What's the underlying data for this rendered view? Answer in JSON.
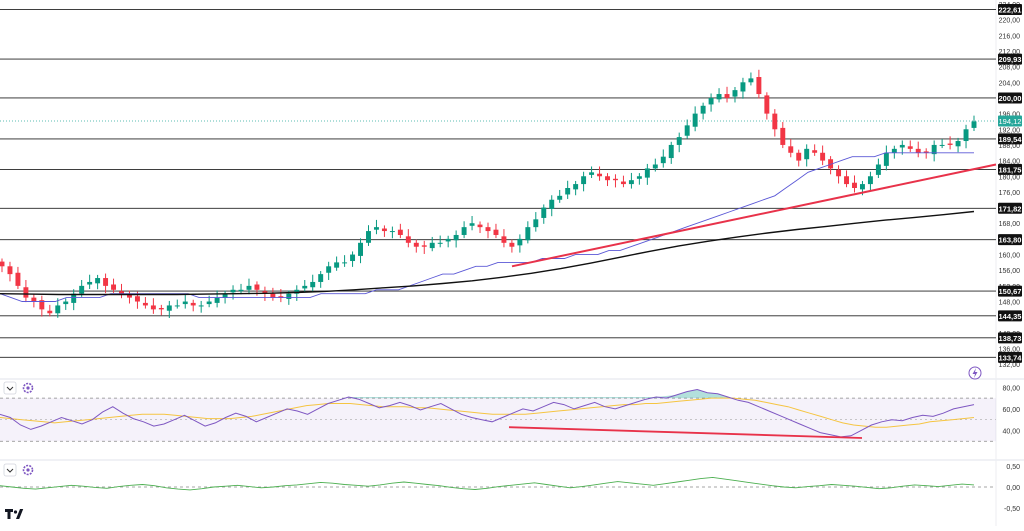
{
  "chart_data": {
    "type": "candlestick",
    "price_axis": {
      "ylim": [
        130.0,
        224.0
      ],
      "ticks": [
        "224,00",
        "220,00",
        "216,00",
        "212,00",
        "208,00",
        "204,00",
        "200,00",
        "196,00",
        "192,00",
        "188,00",
        "184,00",
        "180,00",
        "176,00",
        "168,00",
        "164,00",
        "160,00",
        "156,00",
        "152,00",
        "148,00",
        "140,00",
        "136,00",
        "132,00"
      ],
      "tick_values": [
        224,
        220,
        216,
        212,
        208,
        204,
        200,
        196,
        192,
        188,
        184,
        180,
        176,
        168,
        164,
        160,
        156,
        152,
        148,
        140,
        136,
        132
      ]
    },
    "levels": [
      {
        "value": 222.61,
        "label": "222,61"
      },
      {
        "value": 209.93,
        "label": "209,93"
      },
      {
        "value": 200.0,
        "label": "200,00"
      },
      {
        "value": 189.54,
        "label": "189,54"
      },
      {
        "value": 181.75,
        "label": "181,75"
      },
      {
        "value": 171.82,
        "label": "171,82"
      },
      {
        "value": 163.8,
        "label": "163,80"
      },
      {
        "value": 150.67,
        "label": "150,67"
      },
      {
        "value": 144.35,
        "label": "144,35"
      },
      {
        "value": 138.73,
        "label": "138,73"
      },
      {
        "value": 133.74,
        "label": "133,74"
      }
    ],
    "last_price": {
      "value": 194.12,
      "label": "194,12"
    },
    "closes": [
      157,
      155,
      152,
      149,
      148,
      146,
      145,
      147,
      148,
      150,
      152,
      153,
      154,
      152,
      151,
      150,
      149,
      148,
      147,
      146,
      146,
      147,
      147,
      148,
      147,
      147,
      148,
      149,
      150,
      151,
      151,
      152,
      151,
      150,
      149,
      149,
      150,
      151,
      152,
      153,
      155,
      157,
      158,
      158,
      160,
      163,
      166,
      167,
      166,
      166,
      165,
      163,
      162,
      162,
      163,
      163,
      164,
      165,
      167,
      168,
      167,
      166,
      165,
      163,
      162,
      164,
      167,
      169,
      172,
      174,
      175,
      177,
      178,
      180,
      181,
      180,
      179,
      179,
      178,
      179,
      180,
      182,
      183,
      185,
      188,
      190,
      193,
      196,
      198,
      200,
      201,
      200,
      202,
      204,
      205,
      201,
      196,
      192,
      188,
      186,
      184,
      187,
      186,
      184,
      182,
      180,
      178,
      177,
      178,
      180,
      183,
      186,
      187,
      188,
      187,
      186,
      186,
      188,
      188,
      188,
      189,
      192,
      194
    ],
    "overlays": [
      {
        "name": "MA-50",
        "color": "#5b58d6",
        "values": [
          150,
          149,
          148,
          148,
          148,
          148,
          149,
          149,
          149,
          149,
          150,
          150,
          150,
          150,
          150,
          150,
          150,
          150,
          149,
          149,
          149,
          149,
          149,
          149,
          149,
          149,
          149,
          149,
          149,
          150,
          150,
          150,
          150,
          150,
          151,
          151,
          151,
          152,
          153,
          154,
          155,
          155,
          156,
          157,
          157,
          158,
          158,
          158,
          158,
          159,
          159,
          159,
          160,
          160,
          160,
          161,
          161,
          162,
          163,
          164,
          165,
          166,
          167,
          168,
          169,
          170,
          171,
          172,
          173,
          174,
          175,
          177,
          179,
          181,
          182,
          183,
          184,
          185,
          185,
          185,
          186,
          186,
          186,
          186,
          186,
          186,
          186,
          186,
          186
        ]
      },
      {
        "name": "MA-200",
        "color": "#111111",
        "values": [
          150.0,
          149.9,
          149.8,
          149.8,
          149.8,
          149.8,
          149.8,
          149.9,
          150.0,
          150.1,
          150.3,
          150.6,
          151.0,
          151.5,
          152.0,
          152.6,
          153.3,
          154.2,
          155.2,
          156.4,
          157.8,
          159.3,
          160.8,
          162.2,
          163.4,
          164.5,
          165.5,
          166.4,
          167.2,
          168.0,
          168.8,
          169.5,
          170.2,
          171.0
        ]
      },
      {
        "name": "Trendline",
        "color": "#e8324a",
        "from": 157.0,
        "to": 183.0
      }
    ],
    "rsi": {
      "ylim": [
        20,
        84
      ],
      "ticks": [
        "80,00",
        "60,00",
        "40,00"
      ],
      "tick_values": [
        80,
        60,
        40
      ],
      "band_upper": 70,
      "band_lower": 30,
      "values": [
        55,
        52,
        45,
        41,
        44,
        48,
        52,
        49,
        46,
        50,
        57,
        62,
        56,
        51,
        48,
        44,
        46,
        50,
        54,
        49,
        44,
        47,
        52,
        56,
        53,
        48,
        52,
        56,
        60,
        58,
        55,
        60,
        65,
        68,
        71,
        69,
        65,
        61,
        63,
        66,
        63,
        59,
        62,
        65,
        60,
        55,
        52,
        50,
        48,
        52,
        56,
        60,
        58,
        62,
        66,
        64,
        60,
        63,
        66,
        62,
        60,
        63,
        66,
        69,
        71,
        70,
        73,
        76,
        78,
        75,
        74,
        71,
        68,
        66,
        62,
        58,
        54,
        50,
        46,
        42,
        38,
        36,
        34,
        35,
        40,
        45,
        48,
        50,
        49,
        52,
        54,
        53,
        56,
        60,
        62,
        64
      ],
      "signal": [
        52,
        51,
        50,
        49,
        48,
        47,
        48,
        49,
        50,
        51,
        52,
        53,
        54,
        55,
        55,
        55,
        54,
        53,
        52,
        51,
        51,
        51,
        52,
        53,
        55,
        57,
        59,
        61,
        63,
        64,
        65,
        65,
        65,
        64,
        63,
        62,
        62,
        62,
        61,
        61,
        60,
        59,
        58,
        57,
        56,
        55,
        55,
        55,
        55,
        56,
        57,
        58,
        59,
        60,
        61,
        62,
        63,
        64,
        64,
        65,
        65,
        66,
        67,
        68,
        69,
        70,
        70,
        70,
        69,
        68,
        66,
        64,
        62,
        59,
        56,
        53,
        50,
        47,
        45,
        44,
        43,
        43,
        44,
        45,
        46,
        48,
        49,
        50,
        51,
        52
      ],
      "divergence": {
        "from": 43.0,
        "to": 33.0
      }
    },
    "oscillator": {
      "ylim": [
        -0.55,
        0.55
      ],
      "ticks": [
        "0,50",
        "0,00",
        "-0,50"
      ],
      "tick_values": [
        0.5,
        0.0,
        -0.5
      ],
      "values": [
        0.03,
        0.0,
        -0.03,
        -0.05,
        -0.02,
        0.01,
        0.04,
        0.02,
        -0.01,
        -0.03,
        0.01,
        0.04,
        0.06,
        0.03,
        -0.02,
        -0.05,
        -0.07,
        -0.04,
        0.0,
        0.02,
        0.04,
        0.01,
        -0.02,
        0.0,
        0.03,
        0.05,
        0.08,
        0.11,
        0.09,
        0.06,
        0.04,
        0.02,
        0.05,
        0.09,
        0.12,
        0.09,
        0.06,
        0.03,
        -0.01,
        -0.04,
        -0.06,
        -0.03,
        0.01,
        0.04,
        0.07,
        0.1,
        0.06,
        0.02,
        -0.02,
        0.01,
        0.05,
        0.09,
        0.13,
        0.1,
        0.07,
        0.04,
        0.08,
        0.12,
        0.16,
        0.2,
        0.23,
        0.19,
        0.15,
        0.11,
        0.07,
        0.03,
        0.0,
        -0.02,
        0.01,
        0.03,
        0.06,
        0.04,
        0.02,
        -0.01,
        -0.04,
        -0.02,
        0.02,
        0.05,
        0.03,
        0.01,
        0.04,
        0.07,
        0.05
      ]
    }
  }
}
